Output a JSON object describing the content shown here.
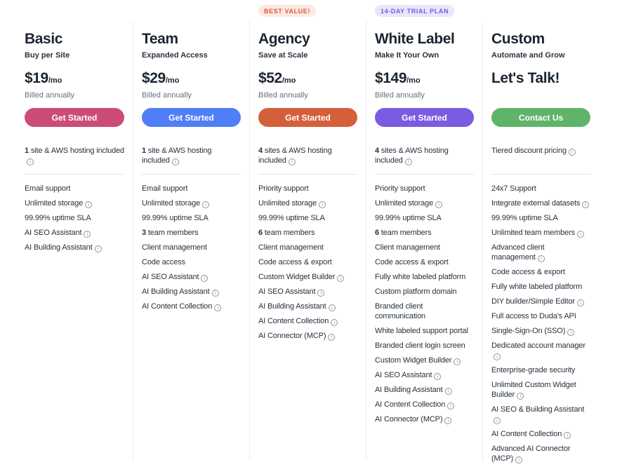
{
  "theme": {
    "heading_text": "#1b2531",
    "body_text": "#27313d",
    "muted_text": "#67707b",
    "column_divider": "#ececee"
  },
  "plans": [
    {
      "id": "basic",
      "badge": null,
      "name": "Basic",
      "tagline": "Buy per Site",
      "price": "$19",
      "price_suffix": "/mo",
      "billing_note": "Billed annually",
      "cta": {
        "label": "Get Started",
        "bg_color": "#cb4c78"
      },
      "highlight": {
        "bold": "1",
        "text": " site & AWS hosting included",
        "info": true
      },
      "features": [
        {
          "text": "Email support"
        },
        {
          "text": "Unlimited storage",
          "info": true
        },
        {
          "text": "99.99% uptime SLA"
        },
        {
          "text": "AI SEO Assistant",
          "info": true
        },
        {
          "text": "AI Building Assistant",
          "info": true
        }
      ]
    },
    {
      "id": "team",
      "badge": null,
      "name": "Team",
      "tagline": "Expanded Access",
      "price": "$29",
      "price_suffix": "/mo",
      "billing_note": "Billed annually",
      "cta": {
        "label": "Get Started",
        "bg_color": "#4f7ef7"
      },
      "highlight": {
        "bold": "1",
        "text": " site & AWS hosting included",
        "info": true
      },
      "features": [
        {
          "text": "Email support"
        },
        {
          "text": "Unlimited storage",
          "info": true
        },
        {
          "text": "99.99% uptime SLA"
        },
        {
          "bold": "3",
          "text": " team members"
        },
        {
          "text": "Client management"
        },
        {
          "text": "Code access"
        },
        {
          "text": "AI SEO Assistant",
          "info": true
        },
        {
          "text": "AI Building Assistant",
          "info": true
        },
        {
          "text": "AI Content Collection",
          "info": true
        }
      ]
    },
    {
      "id": "agency",
      "badge": {
        "label": "BEST VALUE!",
        "text_color": "#e0593d",
        "bg_color": "#fbeae3"
      },
      "name": "Agency",
      "tagline": "Save at Scale",
      "price": "$52",
      "price_suffix": "/mo",
      "billing_note": "Billed annually",
      "cta": {
        "label": "Get Started",
        "bg_color": "#d4603b"
      },
      "highlight": {
        "bold": "4",
        "text": " sites & AWS hosting included",
        "info": true
      },
      "features": [
        {
          "text": "Priority support"
        },
        {
          "text": "Unlimited storage",
          "info": true
        },
        {
          "text": "99.99% uptime SLA"
        },
        {
          "bold": "6",
          "text": " team members"
        },
        {
          "text": "Client management"
        },
        {
          "text": "Code access & export"
        },
        {
          "text": "Custom Widget Builder",
          "info": true
        },
        {
          "text": "AI SEO Assistant",
          "info": true
        },
        {
          "text": "AI Building Assistant",
          "info": true
        },
        {
          "text": "AI Content Collection",
          "info": true
        },
        {
          "text": "AI Connector (MCP)",
          "info": true
        }
      ]
    },
    {
      "id": "white-label",
      "badge": {
        "label": "14-DAY TRIAL PLAN",
        "text_color": "#7a5be0",
        "bg_color": "#eae6fb"
      },
      "name": "White Label",
      "tagline": "Make It Your Own",
      "price": "$149",
      "price_suffix": "/mo",
      "billing_note": "Billed annually",
      "cta": {
        "label": "Get Started",
        "bg_color": "#7a5ce0"
      },
      "highlight": {
        "bold": "4",
        "text": " sites & AWS hosting included",
        "info": true
      },
      "features": [
        {
          "text": "Priority support"
        },
        {
          "text": "Unlimited storage",
          "info": true
        },
        {
          "text": "99.99% uptime SLA"
        },
        {
          "bold": "6",
          "text": " team members"
        },
        {
          "text": "Client management"
        },
        {
          "text": "Code access & export"
        },
        {
          "text": "Fully white labeled platform"
        },
        {
          "text": "Custom platform domain"
        },
        {
          "text": "Branded client communication"
        },
        {
          "text": "White labeled support portal"
        },
        {
          "text": "Branded client login screen"
        },
        {
          "text": "Custom Widget Builder",
          "info": true
        },
        {
          "text": "AI SEO Assistant",
          "info": true
        },
        {
          "text": "AI Building Assistant",
          "info": true
        },
        {
          "text": "AI Content Collection",
          "info": true
        },
        {
          "text": "AI Connector (MCP)",
          "info": true
        }
      ]
    },
    {
      "id": "custom",
      "badge": null,
      "name": "Custom",
      "tagline": "Automate and Grow",
      "price": "Let's Talk!",
      "price_suffix": "",
      "billing_note": "",
      "cta": {
        "label": "Contact Us",
        "bg_color": "#5fb469"
      },
      "highlight": {
        "text": "Tiered discount pricing",
        "info": true
      },
      "features": [
        {
          "text": "24x7 Support"
        },
        {
          "text": "Integrate external datasets",
          "info": true
        },
        {
          "text": "99.99% uptime SLA"
        },
        {
          "text": "Unlimited team members",
          "info": true
        },
        {
          "text": "Advanced client management",
          "info": true
        },
        {
          "text": "Code access & export"
        },
        {
          "text": "Fully white labeled platform"
        },
        {
          "text": "DIY builder/Simple Editor",
          "info": true
        },
        {
          "text": "Full access to Duda's API"
        },
        {
          "text": "Single-Sign-On (SSO)",
          "info": true
        },
        {
          "text": "Dedicated account manager",
          "info": true
        },
        {
          "text": "Enterprise-grade security"
        },
        {
          "text": "Unlimited Custom Widget Builder",
          "info": true
        },
        {
          "text": "AI SEO & Building Assistant",
          "info": true
        },
        {
          "text": "AI Content Collection",
          "info": true
        },
        {
          "text": "Advanced AI Connector (MCP)",
          "info": true
        }
      ]
    }
  ]
}
